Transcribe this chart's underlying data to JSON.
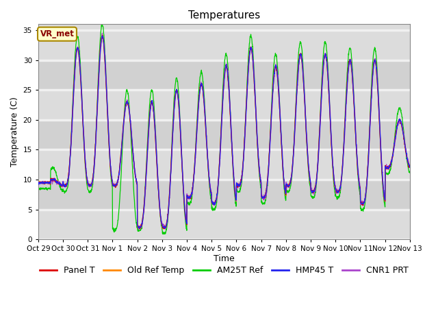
{
  "title": "Temperatures",
  "xlabel": "Time",
  "ylabel": "Temperature (C)",
  "ylim": [
    0,
    36
  ],
  "yticks": [
    0,
    5,
    10,
    15,
    20,
    25,
    30,
    35
  ],
  "num_days": 15,
  "plot_bg_color": "#dcdcdc",
  "grid_color": "#f0f0f0",
  "series_colors": {
    "Panel T": "#dd0000",
    "Old Ref Temp": "#ff8800",
    "AM25T Ref": "#00cc00",
    "HMP45 T": "#2222ee",
    "CNR1 PRT": "#aa44cc"
  },
  "annotation_text": "VR_met",
  "annotation_bg": "#ffffcc",
  "annotation_border": "#aa8800",
  "annotation_text_color": "#880000",
  "x_tick_labels": [
    "Oct 29",
    "Oct 30",
    "Oct 31",
    "Nov 1",
    "Nov 2",
    "Nov 3",
    "Nov 4",
    "Nov 5",
    "Nov 6",
    "Nov 7",
    "Nov 8",
    "Nov 9",
    "Nov 10",
    "Nov 11",
    "Nov 12",
    "Nov 13"
  ],
  "legend_fontsize": 9,
  "title_fontsize": 11,
  "day_maxes": [
    10,
    32,
    34,
    23,
    23,
    25,
    26,
    29,
    32,
    29,
    31,
    31,
    30,
    30,
    20
  ],
  "day_mins": [
    9,
    9,
    9,
    9,
    2,
    2,
    7,
    6,
    9,
    7,
    9,
    8,
    8,
    6,
    12
  ]
}
